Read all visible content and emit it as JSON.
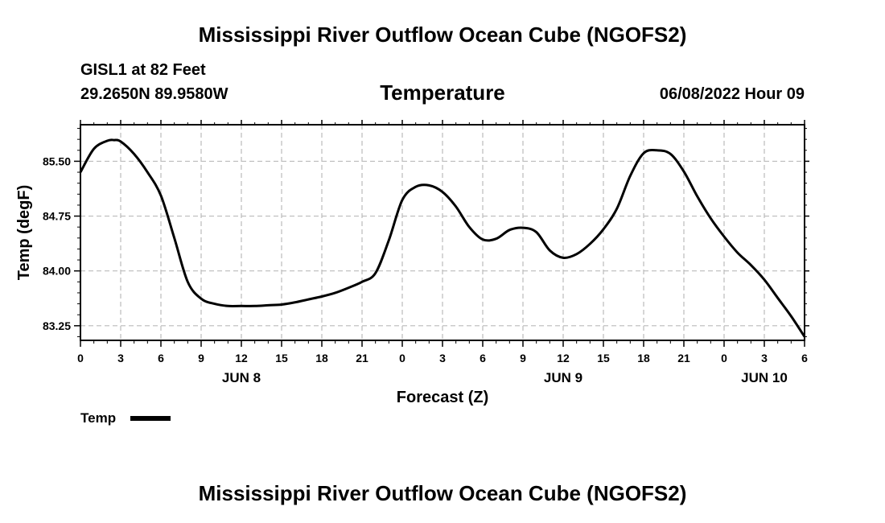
{
  "header": {
    "title": "Mississippi River Outflow Ocean Cube (NGOFS2)",
    "station": "GISL1 at 82 Feet",
    "coords": "29.2650N  89.9580W",
    "variable": "Temperature",
    "datetime": "06/08/2022 Hour 09"
  },
  "footer": {
    "title": "Mississippi River Outflow Ocean Cube (NGOFS2)"
  },
  "chart_data": {
    "type": "line",
    "title": "Temperature",
    "xlabel": "Forecast (Z)",
    "ylabel": "Temp (degF)",
    "xlim": [
      0,
      54
    ],
    "ylim": [
      83.05,
      86.0
    ],
    "grid": true,
    "x_ticks": [
      0,
      3,
      6,
      9,
      12,
      15,
      18,
      21,
      24,
      27,
      30,
      33,
      36,
      39,
      42,
      45,
      48,
      51,
      54
    ],
    "x_tick_labels": [
      "0",
      "3",
      "6",
      "9",
      "12",
      "15",
      "18",
      "21",
      "0",
      "3",
      "6",
      "9",
      "12",
      "15",
      "18",
      "21",
      "0",
      "3",
      "6"
    ],
    "y_ticks": [
      83.25,
      84.0,
      84.75,
      85.5
    ],
    "y_tick_labels": [
      "83.25",
      "84.00",
      "84.75",
      "85.50"
    ],
    "date_labels": [
      {
        "x": 12,
        "label": "JUN 8"
      },
      {
        "x": 36,
        "label": "JUN 9"
      },
      {
        "x": 51,
        "label": "JUN 10"
      }
    ],
    "legend": {
      "label": "Temp",
      "position": "bottom-left"
    },
    "series": [
      {
        "name": "Temp",
        "color": "#000000",
        "x": [
          0,
          1,
          2,
          2.5,
          3,
          4,
          5,
          6,
          7,
          8,
          9,
          10,
          11,
          12,
          13,
          14,
          15,
          16,
          17,
          18,
          19,
          20,
          21,
          22,
          23,
          24,
          25,
          26,
          27,
          28,
          29,
          30,
          31,
          32,
          33,
          34,
          35,
          36,
          37,
          38,
          39,
          40,
          41,
          42,
          43,
          44,
          45,
          46,
          47,
          48,
          49,
          50,
          51,
          52,
          53,
          54
        ],
        "values": [
          85.35,
          85.67,
          85.78,
          85.79,
          85.77,
          85.6,
          85.35,
          85.03,
          84.45,
          83.85,
          83.62,
          83.55,
          83.52,
          83.52,
          83.52,
          83.53,
          83.54,
          83.57,
          83.61,
          83.65,
          83.7,
          83.77,
          83.85,
          83.97,
          84.42,
          84.97,
          85.15,
          85.17,
          85.08,
          84.88,
          84.6,
          84.43,
          84.44,
          84.56,
          84.59,
          84.53,
          84.28,
          84.18,
          84.23,
          84.37,
          84.57,
          84.85,
          85.3,
          85.61,
          85.65,
          85.6,
          85.36,
          85.02,
          84.72,
          84.47,
          84.25,
          84.08,
          83.88,
          83.63,
          83.38,
          83.1
        ]
      }
    ]
  }
}
